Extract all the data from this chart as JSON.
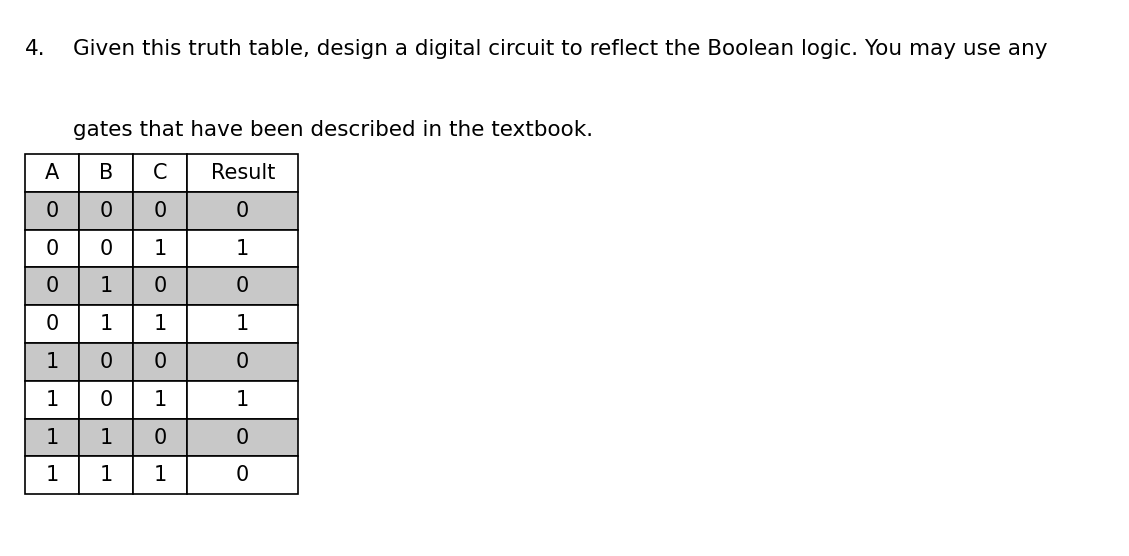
{
  "question_number": "4.",
  "line1": "Given this truth table, design a digital circuit to reflect the Boolean logic. You may use any",
  "line2": "gates that have been described in the textbook.",
  "headers": [
    "A",
    "B",
    "C",
    "Result"
  ],
  "rows": [
    [
      0,
      0,
      0,
      0
    ],
    [
      0,
      0,
      1,
      1
    ],
    [
      0,
      1,
      0,
      0
    ],
    [
      0,
      1,
      1,
      1
    ],
    [
      1,
      0,
      0,
      0
    ],
    [
      1,
      0,
      1,
      1
    ],
    [
      1,
      1,
      0,
      0
    ],
    [
      1,
      1,
      1,
      0
    ]
  ],
  "shaded_rows": [
    0,
    2,
    4,
    6
  ],
  "shade_color": "#c8c8c8",
  "white_color": "#ffffff",
  "border_color": "#000000",
  "text_color": "#000000",
  "background_color": "#ffffff",
  "header_bg": "#ffffff",
  "font_size_question": 15.5,
  "font_size_table": 15.0
}
